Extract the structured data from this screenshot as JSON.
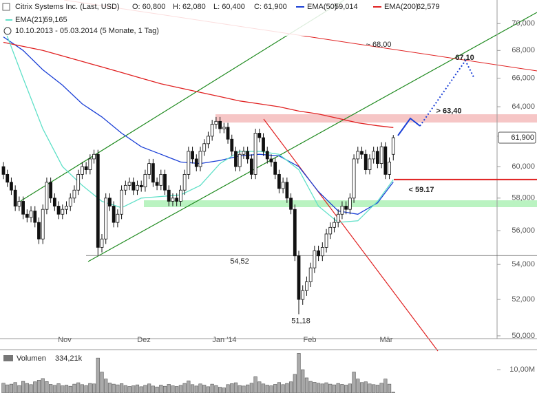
{
  "chart_data": {
    "type": "candlestick",
    "title": "Citrix Systems Inc. (Last, USD)",
    "ohlc_labels": [
      "O: 60,800",
      "H: 62,080",
      "L: 60,400",
      "C: 61,900"
    ],
    "date_range": "10.10.2013 - 05.03.2014 (5 Monate, 1 Tag)",
    "log_scale": true,
    "up_color": "#ffffff",
    "down_color": "#111111",
    "month_labels": [
      "Nov",
      "Dez",
      "Jan '14",
      "Feb",
      "Mär"
    ],
    "open": [
      60.0,
      59.5,
      59.0,
      58.5,
      57.5,
      57.8,
      57.0,
      56.8,
      57.2,
      56.5,
      55.5,
      57.3,
      59.0,
      58.0,
      57.5,
      57.0,
      57.3,
      57.5,
      58.0,
      58.5,
      59.5,
      60.0,
      59.8,
      60.5,
      60.8,
      55.0,
      55.5,
      58.0,
      57.5,
      56.5,
      57.0,
      58.5,
      58.8,
      59.0,
      58.5,
      58.8,
      58.7,
      59.5,
      60.2,
      59.0,
      58.8,
      59.5,
      58.5,
      57.8,
      58.0,
      57.8,
      58.5,
      59.5,
      61.0,
      60.5,
      60.0,
      61.0,
      61.5,
      62.0,
      62.8,
      63.0,
      62.5,
      62.6,
      61.8,
      61.0,
      60.0,
      60.8,
      61.0,
      60.5,
      59.5,
      62.2,
      61.9,
      61.0,
      60.5,
      60.3,
      59.5,
      58.6,
      59.0,
      58.0,
      57.3,
      54.5,
      52.0,
      52.5,
      53.0,
      53.8,
      54.8,
      54.5,
      55.0,
      55.8,
      56.2,
      56.5,
      57.0,
      57.5,
      57.3,
      58.0,
      60.5,
      61.0,
      60.8,
      59.8,
      60.5,
      61.0,
      60.2,
      61.3,
      59.5,
      60.8
    ],
    "high": [
      60.3,
      59.8,
      59.3,
      58.8,
      58.1,
      58.1,
      57.3,
      57.5,
      57.5,
      56.8,
      57.6,
      59.3,
      59.3,
      58.3,
      57.8,
      57.6,
      57.8,
      58.3,
      58.8,
      59.8,
      60.3,
      60.3,
      60.8,
      61.1,
      61.1,
      55.8,
      58.3,
      58.3,
      57.8,
      57.3,
      58.8,
      59.1,
      59.3,
      59.3,
      59.1,
      59.1,
      59.8,
      60.5,
      60.5,
      59.3,
      59.8,
      59.8,
      58.8,
      58.3,
      58.3,
      58.8,
      59.8,
      61.3,
      61.3,
      60.8,
      61.3,
      61.8,
      62.3,
      63.1,
      63.3,
      63.3,
      62.9,
      62.9,
      62.1,
      61.3,
      61.1,
      61.3,
      61.3,
      60.8,
      62.5,
      62.5,
      62.2,
      61.3,
      60.8,
      60.6,
      59.8,
      59.3,
      59.3,
      58.3,
      57.6,
      54.8,
      52.8,
      53.3,
      54.1,
      55.1,
      55.1,
      55.3,
      56.1,
      56.5,
      56.8,
      57.3,
      57.8,
      57.8,
      58.3,
      60.8,
      61.3,
      61.3,
      61.1,
      60.8,
      61.3,
      61.3,
      61.6,
      61.6,
      60.6,
      62.08
    ],
    "low": [
      59.2,
      58.7,
      58.2,
      57.2,
      57.2,
      56.7,
      56.5,
      56.5,
      56.2,
      55.2,
      55.2,
      57.0,
      57.7,
      57.2,
      56.7,
      56.7,
      57.0,
      57.2,
      57.7,
      58.2,
      59.2,
      59.5,
      59.5,
      60.2,
      54.52,
      54.7,
      55.2,
      57.2,
      56.2,
      56.2,
      56.7,
      58.2,
      58.5,
      58.2,
      58.2,
      58.4,
      58.4,
      59.2,
      58.7,
      58.5,
      58.5,
      58.2,
      57.5,
      57.5,
      57.5,
      57.5,
      58.2,
      59.2,
      60.2,
      59.7,
      59.7,
      60.7,
      61.2,
      61.7,
      62.5,
      62.2,
      62.2,
      61.5,
      60.7,
      59.7,
      59.7,
      60.5,
      60.2,
      59.2,
      59.2,
      61.6,
      60.7,
      60.2,
      60.0,
      59.2,
      58.3,
      58.3,
      57.7,
      57.0,
      54.2,
      51.18,
      51.7,
      52.2,
      52.7,
      53.5,
      54.2,
      54.2,
      54.7,
      55.5,
      55.9,
      56.2,
      56.7,
      57.0,
      57.0,
      57.7,
      60.2,
      60.5,
      59.5,
      59.5,
      60.2,
      59.9,
      59.9,
      59.2,
      59.2,
      60.4
    ],
    "close": [
      59.5,
      59.0,
      58.5,
      57.5,
      57.8,
      57.0,
      56.8,
      57.2,
      56.5,
      55.5,
      57.3,
      59.0,
      58.0,
      57.5,
      57.0,
      57.3,
      57.5,
      58.0,
      58.5,
      59.5,
      60.0,
      59.8,
      60.5,
      60.8,
      55.0,
      55.5,
      58.0,
      57.5,
      56.5,
      57.0,
      58.5,
      58.8,
      59.0,
      58.5,
      58.8,
      58.7,
      59.5,
      60.2,
      59.0,
      58.8,
      59.5,
      58.5,
      57.8,
      58.0,
      57.8,
      58.5,
      59.5,
      61.0,
      60.5,
      60.0,
      61.0,
      61.5,
      62.0,
      62.8,
      63.0,
      62.5,
      62.6,
      61.8,
      61.0,
      60.0,
      60.8,
      61.0,
      60.5,
      59.5,
      62.2,
      61.9,
      61.0,
      60.5,
      60.3,
      59.5,
      58.6,
      59.0,
      58.0,
      57.3,
      54.5,
      52.0,
      52.5,
      53.0,
      53.8,
      54.8,
      54.5,
      55.0,
      55.8,
      56.2,
      56.5,
      57.0,
      57.5,
      57.3,
      58.0,
      60.5,
      61.0,
      60.8,
      59.8,
      60.5,
      61.0,
      60.2,
      61.3,
      59.5,
      60.3,
      61.9
    ],
    "ylim": [
      49.85,
      71.8
    ],
    "yticks": [
      {
        "value": 50,
        "label": "50,000"
      },
      {
        "value": 52,
        "label": "52,000"
      },
      {
        "value": 54,
        "label": "54,000"
      },
      {
        "value": 56,
        "label": "56,000"
      },
      {
        "value": 58,
        "label": "58,000"
      },
      {
        "value": 60,
        "label": "60,000"
      },
      {
        "value": 62,
        "label": "62,000"
      },
      {
        "value": 64,
        "label": "64,000"
      },
      {
        "value": 66,
        "label": "66,000"
      },
      {
        "value": 68,
        "label": "68,000"
      },
      {
        "value": 70,
        "label": "70,000"
      }
    ],
    "last_price": {
      "value": 61.9,
      "label": "61,900"
    },
    "indicators": [
      {
        "name": "EMA(50)",
        "last_label": "59,014",
        "color": "#1a3fd6",
        "x": [
          0,
          5,
          10,
          15,
          20,
          25,
          30,
          35,
          40,
          45,
          50,
          55,
          60,
          65,
          70,
          75,
          80,
          85,
          90,
          95,
          99
        ],
        "values": [
          69.0,
          68.0,
          66.6,
          65.5,
          64.2,
          63.3,
          62.2,
          61.3,
          60.8,
          60.3,
          60.2,
          60.4,
          60.7,
          60.8,
          60.7,
          60.0,
          58.4,
          57.2,
          57.0,
          57.7,
          59.014
        ]
      },
      {
        "name": "EMA(200)",
        "last_label": "62,579",
        "color": "#e02020",
        "x": [
          0,
          5,
          10,
          15,
          20,
          25,
          30,
          35,
          40,
          45,
          50,
          55,
          60,
          65,
          70,
          75,
          80,
          85,
          90,
          95,
          99
        ],
        "values": [
          68.6,
          68.3,
          68.0,
          67.6,
          67.2,
          66.8,
          66.4,
          66.0,
          65.6,
          65.3,
          65.0,
          64.7,
          64.4,
          64.2,
          64.0,
          63.7,
          63.5,
          63.2,
          62.9,
          62.7,
          62.579
        ]
      },
      {
        "name": "EMA(21)",
        "last_label": "59,165",
        "color": "#5fe0c8",
        "x": [
          0,
          5,
          10,
          15,
          20,
          25,
          30,
          35,
          40,
          45,
          50,
          55,
          60,
          65,
          70,
          75,
          80,
          85,
          90,
          95,
          99
        ],
        "values": [
          69.8,
          66.0,
          62.5,
          60.0,
          58.8,
          57.8,
          57.4,
          58.0,
          58.1,
          58.2,
          58.8,
          60.2,
          61.0,
          61.0,
          60.8,
          59.8,
          57.5,
          56.5,
          56.6,
          57.8,
          59.165
        ]
      }
    ],
    "annotations": [
      {
        "label": "~ 68,00",
        "value": 68
      },
      {
        "label": "67,10",
        "value": 67.1
      },
      {
        "label": "> 63,40",
        "value": 63.4
      },
      {
        "label": "< 59.17",
        "value": 59.17
      },
      {
        "label": "54,52",
        "value": 54.52
      },
      {
        "label": "51,18",
        "value": 51.18
      }
    ],
    "volume": {
      "name": "Volumen",
      "last_label": "334,21k",
      "ylim": [
        0,
        18
      ],
      "yticks": [
        {
          "value": 10,
          "label": "10,00M"
        }
      ],
      "values": [
        4.2,
        3.5,
        3.8,
        4.5,
        3.2,
        5.0,
        4.1,
        3.6,
        4.8,
        5.5,
        6.2,
        4.9,
        3.7,
        3.3,
        4.0,
        3.1,
        3.4,
        2.9,
        3.8,
        4.4,
        3.6,
        3.2,
        4.1,
        3.9,
        15.0,
        9.0,
        6.0,
        4.3,
        3.8,
        3.5,
        4.0,
        3.2,
        2.8,
        3.1,
        3.5,
        2.7,
        3.3,
        3.9,
        3.0,
        2.6,
        3.4,
        2.9,
        3.7,
        3.1,
        2.8,
        3.3,
        4.1,
        5.2,
        3.6,
        3.0,
        3.9,
        3.4,
        2.7,
        3.8,
        3.2,
        2.5,
        2.2,
        3.6,
        4.0,
        4.4,
        3.2,
        3.0,
        3.5,
        4.2,
        7.0,
        4.8,
        3.9,
        3.4,
        3.1,
        3.7,
        4.5,
        3.6,
        4.1,
        4.8,
        8.0,
        17.0,
        10.0,
        6.5,
        5.0,
        4.6,
        4.2,
        3.9,
        4.4,
        3.8,
        3.5,
        4.1,
        3.7,
        3.4,
        3.9,
        9.0,
        6.0,
        4.5,
        4.8,
        3.9,
        3.6,
        3.4,
        4.2,
        6.0,
        3.8,
        0.33421
      ]
    }
  }
}
